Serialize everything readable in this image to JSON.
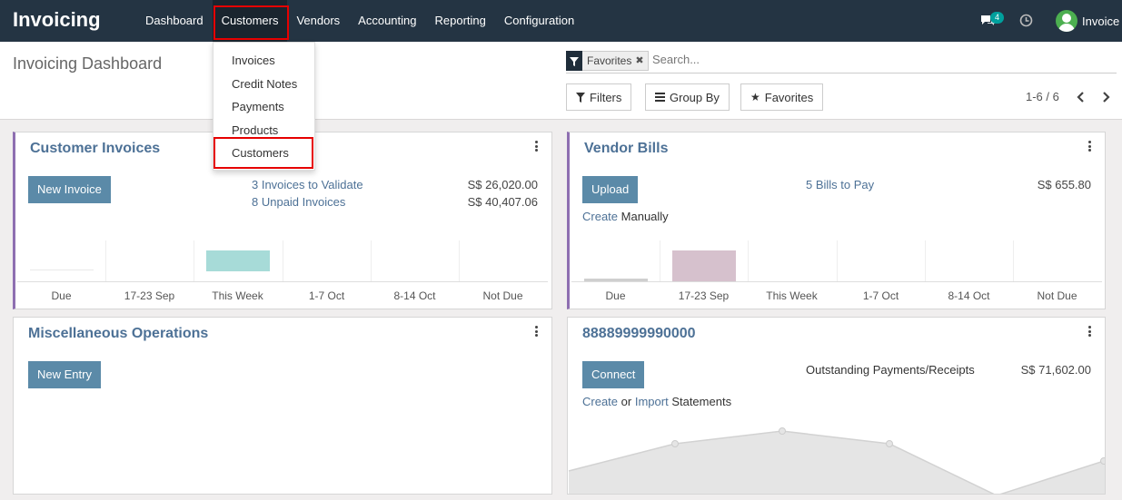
{
  "app": {
    "name": "Invoicing"
  },
  "nav": {
    "items": [
      {
        "label": "Dashboard"
      },
      {
        "label": "Customers"
      },
      {
        "label": "Vendors"
      },
      {
        "label": "Accounting"
      },
      {
        "label": "Reporting"
      },
      {
        "label": "Configuration"
      }
    ],
    "active_item": "Customers"
  },
  "systray": {
    "messages_badge": "4",
    "icons": [
      "chat-icon",
      "clock-icon"
    ],
    "user_name": "Invoice"
  },
  "customers_menu": {
    "items": [
      {
        "label": "Invoices"
      },
      {
        "label": "Credit Notes"
      },
      {
        "label": "Payments"
      },
      {
        "label": "Products"
      },
      {
        "label": "Customers"
      }
    ],
    "highlighted_item": "Customers"
  },
  "control_panel": {
    "title": "Invoicing Dashboard",
    "search": {
      "facet_label": "Favorites",
      "placeholder": "Search..."
    },
    "buttons": {
      "filters": "Filters",
      "group_by": "Group By",
      "favorites": "Favorites"
    },
    "pager": "1-6 / 6"
  },
  "cards": {
    "customer_invoices": {
      "title": "Customer Invoices",
      "action": "New Invoice",
      "lines": [
        {
          "label": "3 Invoices to Validate",
          "amount": "S$ 26,020.00"
        },
        {
          "label": "8 Unpaid Invoices",
          "amount": "S$ 40,407.06"
        }
      ],
      "graph_labels": [
        "Due",
        "17-23 Sep",
        "This Week",
        "1-7 Oct",
        "8-14 Oct",
        "Not Due"
      ],
      "bar_color": "#a7dbd8"
    },
    "vendor_bills": {
      "title": "Vendor Bills",
      "action": "Upload",
      "line": {
        "label": "5 Bills to Pay",
        "amount": "S$ 655.80"
      },
      "create_link": "Create",
      "create_suffix": "Manually",
      "graph_labels": [
        "Due",
        "17-23 Sep",
        "This Week",
        "1-7 Oct",
        "8-14 Oct",
        "Not Due"
      ],
      "bar_color": "#d6c1cd"
    },
    "misc_operations": {
      "title": "Miscellaneous Operations",
      "action": "New Entry"
    },
    "bank": {
      "title": "88889999990000",
      "action": "Connect",
      "line": {
        "label": "Outstanding Payments/Receipts",
        "amount": "S$ 71,602.00"
      },
      "create_link": "Create",
      "or_text": "or",
      "import_link": "Import",
      "statements_text": "Statements"
    }
  },
  "colors": {
    "navbar": "#243443",
    "accent_purple": "#8e6fb1",
    "link": "#4d7196",
    "button": "#5b8aa8",
    "highlight": "#e60000"
  }
}
